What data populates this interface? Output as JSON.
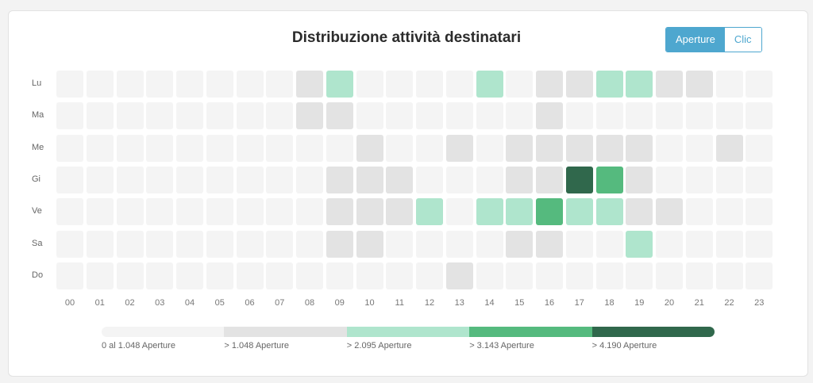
{
  "title": "Distribuzione attività destinatari",
  "toggle": {
    "options": [
      "Aperture",
      "Clic"
    ],
    "active": "Aperture",
    "accent": "#4ea7cf"
  },
  "chart_data": {
    "type": "heatmap",
    "title": "Distribuzione attività destinatari",
    "rows": [
      "Lu",
      "Ma",
      "Me",
      "Gi",
      "Ve",
      "Sa",
      "Do"
    ],
    "columns": [
      "00",
      "01",
      "02",
      "03",
      "04",
      "05",
      "06",
      "07",
      "08",
      "09",
      "10",
      "11",
      "12",
      "13",
      "14",
      "15",
      "16",
      "17",
      "18",
      "19",
      "20",
      "21",
      "22",
      "23"
    ],
    "levels": [
      [
        0,
        0,
        0,
        0,
        0,
        0,
        0,
        0,
        1,
        2,
        0,
        0,
        0,
        0,
        2,
        0,
        1,
        1,
        2,
        2,
        1,
        1,
        0,
        0
      ],
      [
        0,
        0,
        0,
        0,
        0,
        0,
        0,
        0,
        1,
        1,
        0,
        0,
        0,
        0,
        0,
        0,
        1,
        0,
        0,
        0,
        0,
        0,
        0,
        0
      ],
      [
        0,
        0,
        0,
        0,
        0,
        0,
        0,
        0,
        0,
        0,
        1,
        0,
        0,
        1,
        0,
        1,
        1,
        1,
        1,
        1,
        0,
        0,
        1,
        0
      ],
      [
        0,
        0,
        0,
        0,
        0,
        0,
        0,
        0,
        0,
        1,
        1,
        1,
        0,
        0,
        0,
        1,
        1,
        4,
        3,
        1,
        0,
        0,
        0,
        0
      ],
      [
        0,
        0,
        0,
        0,
        0,
        0,
        0,
        0,
        0,
        1,
        1,
        1,
        2,
        0,
        2,
        2,
        3,
        2,
        2,
        1,
        1,
        0,
        0,
        0
      ],
      [
        0,
        0,
        0,
        0,
        0,
        0,
        0,
        0,
        0,
        1,
        1,
        0,
        0,
        0,
        0,
        1,
        1,
        0,
        0,
        2,
        0,
        0,
        0,
        0
      ],
      [
        0,
        0,
        0,
        0,
        0,
        0,
        0,
        0,
        0,
        0,
        0,
        0,
        0,
        1,
        0,
        0,
        0,
        0,
        0,
        0,
        0,
        0,
        0,
        0
      ]
    ],
    "legend": {
      "labels": [
        "0 al 1.048 Aperture",
        "> 1.048 Aperture",
        "> 2.095 Aperture",
        "> 3.143 Aperture",
        "> 4.190 Aperture"
      ],
      "colors": [
        "#f4f4f4",
        "#e3e3e3",
        "#afe5cd",
        "#55ba7e",
        "#30684c"
      ],
      "placement": "bottom"
    }
  }
}
